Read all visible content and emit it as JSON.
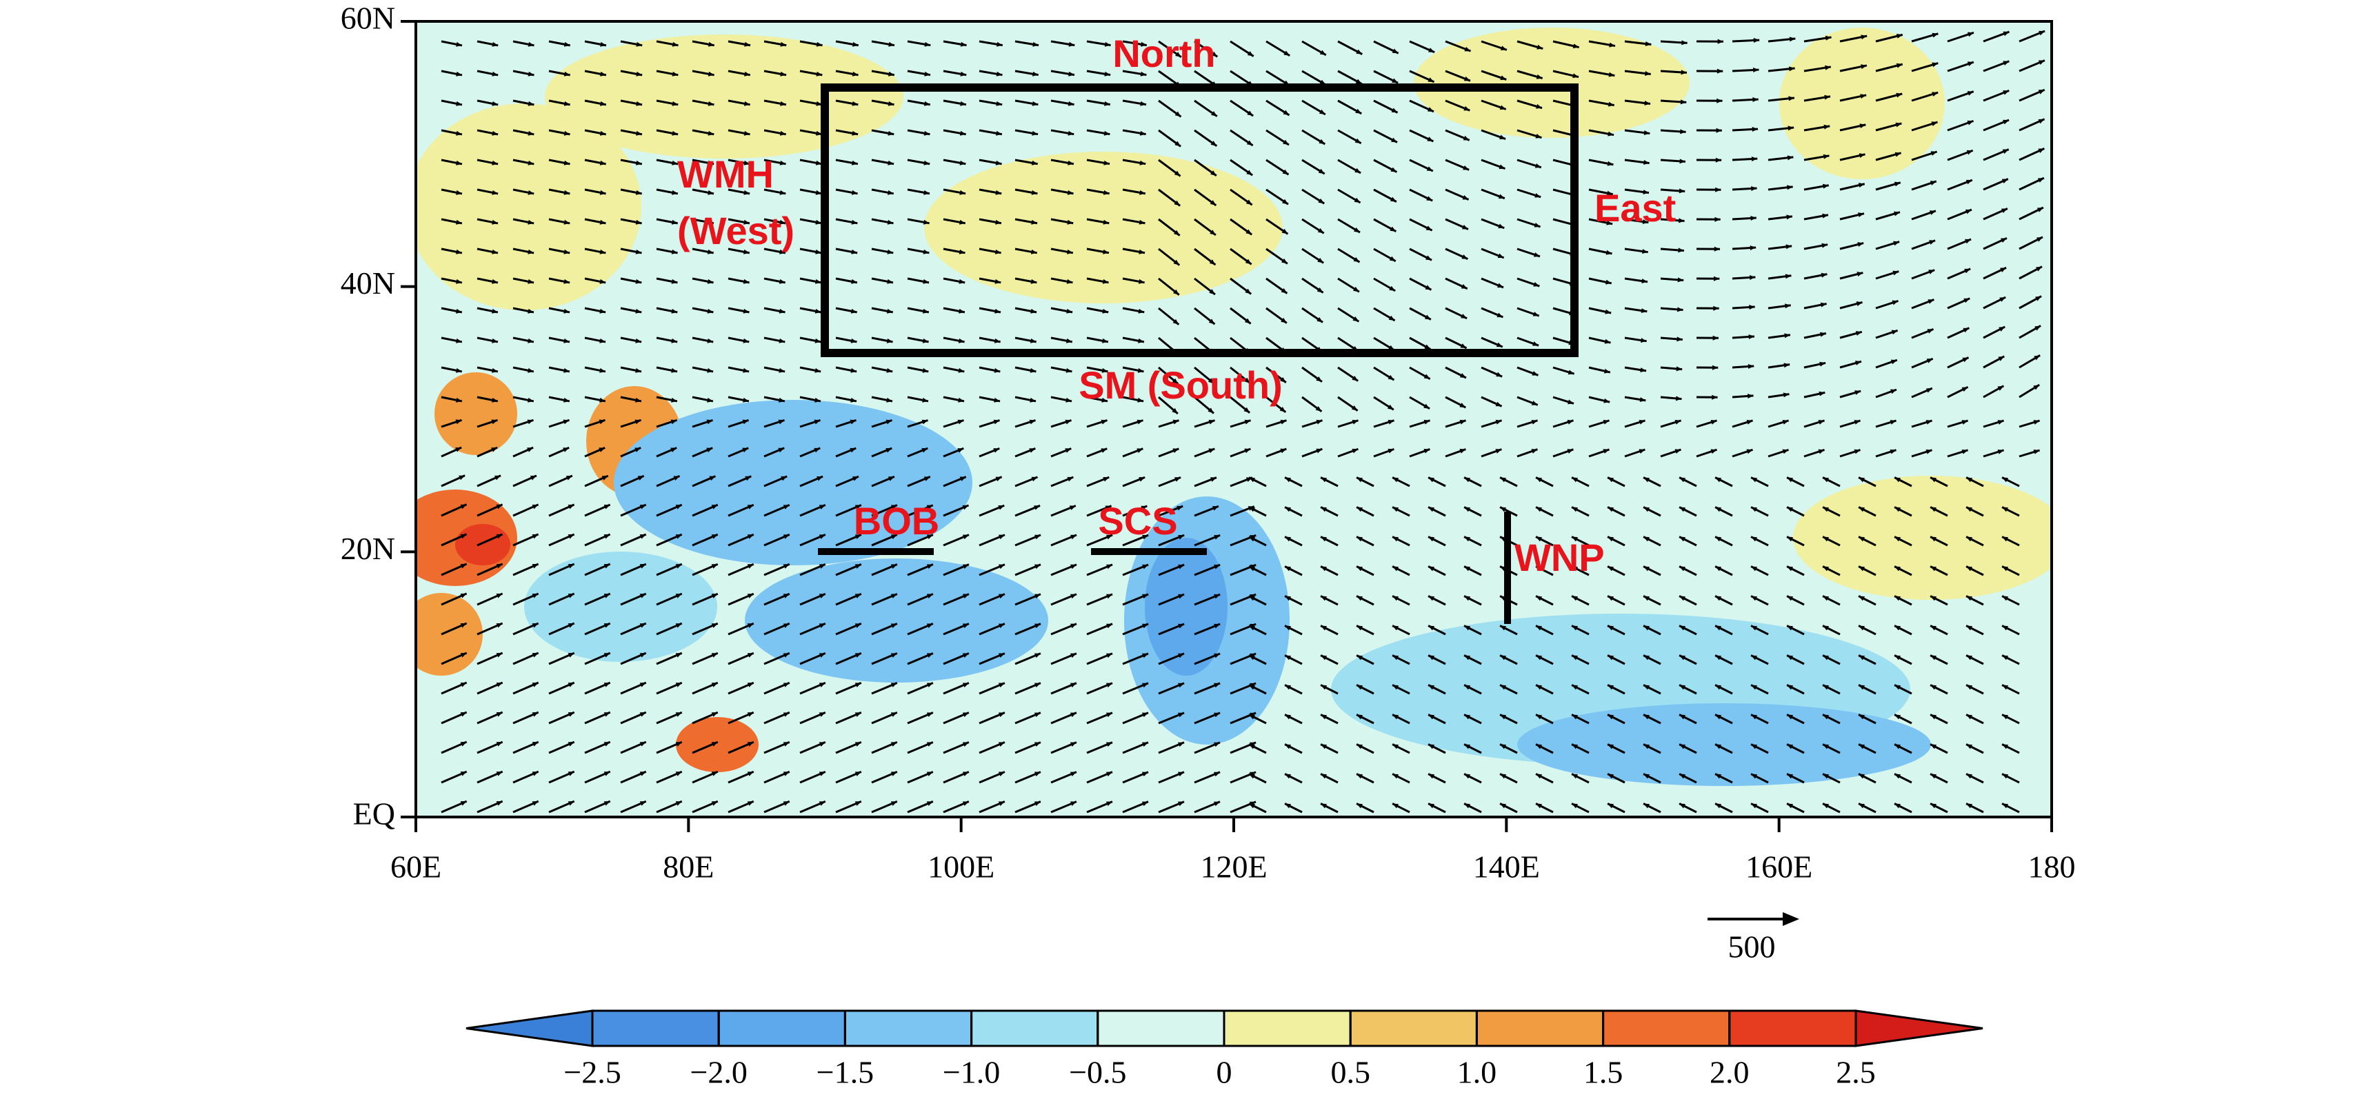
{
  "map": {
    "xticks": [
      {
        "value": 60,
        "label": "60E"
      },
      {
        "value": 80,
        "label": "80E"
      },
      {
        "value": 100,
        "label": "100E"
      },
      {
        "value": 120,
        "label": "120E"
      },
      {
        "value": 140,
        "label": "140E"
      },
      {
        "value": 160,
        "label": "160E"
      },
      180
    ],
    "yticks": [
      {
        "value": 0,
        "label": "EQ"
      },
      {
        "value": 20,
        "label": "20N"
      },
      {
        "value": 40,
        "label": "40N"
      },
      {
        "value": 60,
        "label": "60N"
      }
    ],
    "xlim": [
      60,
      180
    ],
    "ylim": [
      0,
      60
    ],
    "regions": {
      "north": "North",
      "east": "East",
      "west": [
        "WMH",
        "(West)"
      ],
      "south": "SM (South)",
      "bob": "BOB",
      "scs": "SCS",
      "wnp": "WNP"
    },
    "reference_vector": 500
  },
  "colorbar": {
    "ticks": [
      {
        "value": -2.5,
        "label": "−2.5"
      },
      {
        "value": -2,
        "label": "−2.0"
      },
      {
        "value": -1.5,
        "label": "−1.5"
      },
      {
        "value": -1,
        "label": "−1.0"
      },
      {
        "value": -0.5,
        "label": "−0.5"
      },
      0,
      0.5,
      {
        "value": 1,
        "label": "1.0"
      },
      1.5,
      {
        "value": 2,
        "label": "2.0"
      },
      2.5
    ],
    "colors": [
      "#3a7fd8",
      "#4a90e2",
      "#5ea8ec",
      "#7cc4f2",
      "#9edff2",
      "#d6f6ee",
      "#f0f0a0",
      "#f2c564",
      "#f19c40",
      "#ee6c2e",
      "#e63c20",
      "#d41c18"
    ]
  }
}
